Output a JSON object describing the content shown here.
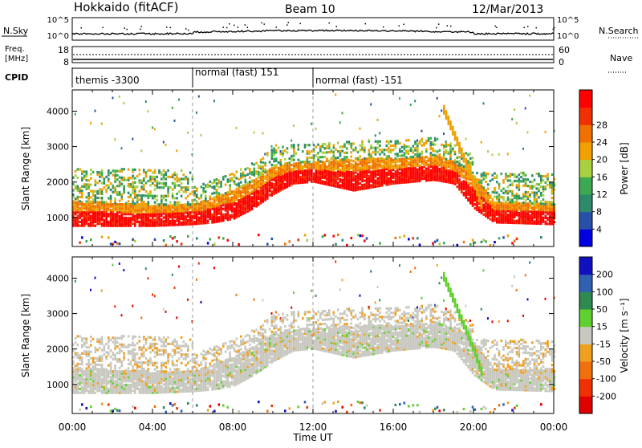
{
  "header": {
    "station": "Hokkaido (fitACF)",
    "beam": "Beam 10",
    "date": "12/Mar/2013"
  },
  "summary_panels": {
    "nsky_label": "N.Sky",
    "nsearch_label": "N.Search",
    "freq_label_top": "Freq.",
    "freq_label_unit": "[MHz]",
    "nave_label": "Nave",
    "cpid_label": "CPID",
    "nsky_ticks_left": [
      "10^5",
      "10^0"
    ],
    "nsky_ticks_right": [
      "10^5",
      "10^0"
    ],
    "freq_ticks_left": [
      "18",
      "8"
    ],
    "nave_ticks_right": [
      "60",
      "0"
    ]
  },
  "cpid_segments": [
    {
      "start_hour": 0,
      "end_hour": 6,
      "label": "themis -3300"
    },
    {
      "start_hour": 6,
      "end_hour": 12,
      "label": "normal (fast) 151"
    },
    {
      "start_hour": 12,
      "end_hour": 24,
      "label": "normal (fast) -151"
    }
  ],
  "axes": {
    "xlabel": "Time UT",
    "x_ticks": [
      "00:00",
      "04:00",
      "08:00",
      "12:00",
      "16:00",
      "20:00",
      "00:00"
    ],
    "x_range_hours": [
      0,
      24
    ],
    "ylabel": "Slant Range [km]",
    "y_ticks": [
      "1000",
      "2000",
      "3000",
      "4000"
    ],
    "y_range_km": [
      180,
      4600
    ]
  },
  "power_colorbar": {
    "label": "Power [dB]",
    "ticks": [
      "4",
      "8",
      "12",
      "16",
      "20",
      "24",
      "28"
    ],
    "colors": [
      "#0000e0",
      "#2850a8",
      "#2e8a6a",
      "#3caa50",
      "#a8d040",
      "#f0a000",
      "#f07000",
      "#f03000",
      "#ff0000"
    ]
  },
  "velocity_colorbar": {
    "label": "Velocity [m s⁻¹]",
    "ticks": [
      "200",
      "100",
      "50",
      "15",
      "-15",
      "-50",
      "-100",
      "-200"
    ],
    "colors": [
      "#1010c0",
      "#3060b0",
      "#2e8a50",
      "#60d030",
      "#c8c8c0",
      "#f0a020",
      "#f07010",
      "#f03000",
      "#e00000"
    ]
  },
  "chart_data": [
    {
      "type": "heatmap",
      "name": "power",
      "description_units": "x: UT hours, y: slant range km, value: power dB",
      "echo_band": [
        {
          "t": 0,
          "lo": 800,
          "hi": 1500
        },
        {
          "t": 4,
          "lo": 800,
          "hi": 1400
        },
        {
          "t": 6,
          "lo": 850,
          "hi": 1400
        },
        {
          "t": 7,
          "lo": 900,
          "hi": 1600
        },
        {
          "t": 8,
          "lo": 1000,
          "hi": 1800
        },
        {
          "t": 9,
          "lo": 1300,
          "hi": 2100
        },
        {
          "t": 10,
          "lo": 1700,
          "hi": 2500
        },
        {
          "t": 11,
          "lo": 2000,
          "hi": 2600
        },
        {
          "t": 12,
          "lo": 2050,
          "hi": 2600
        },
        {
          "t": 14,
          "lo": 1800,
          "hi": 2700
        },
        {
          "t": 16,
          "lo": 2000,
          "hi": 2700
        },
        {
          "t": 18,
          "lo": 2100,
          "hi": 2800
        },
        {
          "t": 19,
          "lo": 2000,
          "hi": 2600
        },
        {
          "t": 20,
          "lo": 1300,
          "hi": 2200
        },
        {
          "t": 21,
          "lo": 900,
          "hi": 1500
        },
        {
          "t": 24,
          "lo": 850,
          "hi": 1400
        }
      ]
    },
    {
      "type": "heatmap",
      "name": "velocity",
      "description_units": "x: UT hours, y: slant range km, value: velocity m/s",
      "positive_streak": [
        {
          "t": 18.4,
          "r": 4200
        },
        {
          "t": 19.0,
          "r": 3400
        },
        {
          "t": 19.5,
          "r": 2700
        },
        {
          "t": 20.0,
          "r": 2000
        },
        {
          "t": 20.4,
          "r": 1350
        }
      ]
    }
  ]
}
